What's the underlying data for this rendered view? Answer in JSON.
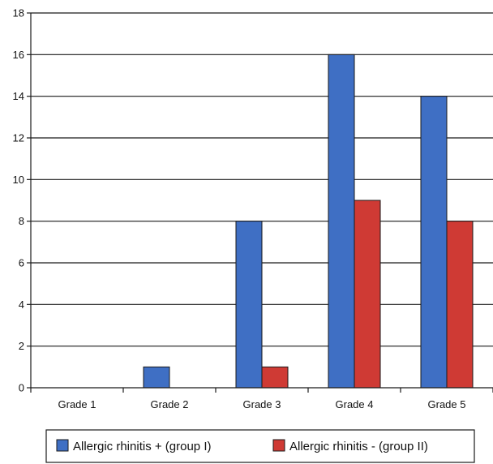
{
  "chart_data": {
    "type": "bar",
    "title": "",
    "xlabel": "",
    "ylabel": "",
    "categories": [
      "Grade 1",
      "Grade 2",
      "Grade 3",
      "Grade 4",
      "Grade 5"
    ],
    "series": [
      {
        "name": "Allergic rhinitis + (group I)",
        "color": "#3f6fc4",
        "values": [
          0,
          1,
          8,
          16,
          14
        ]
      },
      {
        "name": "Allergic rhinitis - (group II)",
        "color": "#cf3a34",
        "values": [
          0,
          0,
          1,
          9,
          8
        ]
      }
    ],
    "ylim": [
      0,
      18
    ],
    "yticks": [
      0,
      2,
      4,
      6,
      8,
      10,
      12,
      14,
      16,
      18
    ],
    "grid": true,
    "legend_position": "bottom"
  }
}
